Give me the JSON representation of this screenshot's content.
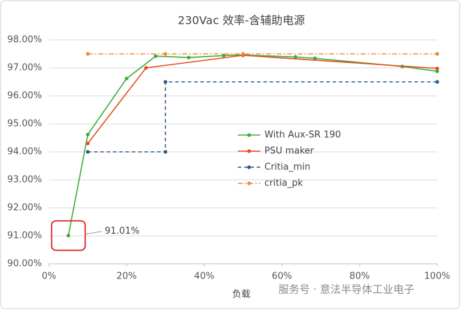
{
  "chart_data": {
    "type": "line",
    "title": "230Vac  效率-含辅助电源",
    "x_label": "负载",
    "xlim": [
      0,
      100
    ],
    "xticks": [
      {
        "value": 0,
        "label": "0%"
      },
      {
        "value": 20,
        "label": "20%"
      },
      {
        "value": 40,
        "label": "40%"
      },
      {
        "value": 60,
        "label": "60%"
      },
      {
        "value": 80,
        "label": "80%"
      },
      {
        "value": 100,
        "label": "100%"
      }
    ],
    "ylim": [
      90,
      98
    ],
    "yticks": [
      {
        "value": 90,
        "label": "90.00%"
      },
      {
        "value": 91,
        "label": "91.00%"
      },
      {
        "value": 92,
        "label": "92.00%"
      },
      {
        "value": 93,
        "label": "93.00%"
      },
      {
        "value": 94,
        "label": "94.00%"
      },
      {
        "value": 95,
        "label": "95.00%"
      },
      {
        "value": 96,
        "label": "96.00%"
      },
      {
        "value": 97,
        "label": "97.00%"
      },
      {
        "value": 98,
        "label": "98.00%"
      }
    ],
    "grid": true,
    "series": [
      {
        "name": "With Aux-SR 190",
        "color": "#3faa3a",
        "dash": "solid",
        "x": [
          5,
          10,
          20,
          27.5,
          36,
          45,
          50,
          63.5,
          68.5,
          91,
          100
        ],
        "values": [
          91.01,
          94.62,
          96.62,
          97.42,
          97.37,
          97.44,
          97.46,
          97.39,
          97.34,
          97.05,
          96.88
        ],
        "value_labels": [
          "91.01%",
          null,
          null,
          null,
          null,
          null,
          null,
          null,
          null,
          null,
          null
        ]
      },
      {
        "name": "PSU maker",
        "color": "#e84a1a",
        "dash": "solid",
        "x": [
          10,
          25,
          50,
          100
        ],
        "values": [
          94.3,
          97.0,
          97.45,
          96.98
        ]
      },
      {
        "name": "Critia_min",
        "color": "#2e5a86",
        "dash": "dash",
        "x": [
          10,
          30,
          30,
          100
        ],
        "values": [
          94,
          94,
          96.5,
          96.5
        ]
      },
      {
        "name": "critia_pk",
        "color": "#ed8a3a",
        "dash": "dashdot",
        "x": [
          10,
          30,
          50,
          100
        ],
        "values": [
          97.5,
          97.5,
          97.5,
          97.5
        ]
      }
    ]
  },
  "watermark": "服务号 · 意法半导体工业电子"
}
